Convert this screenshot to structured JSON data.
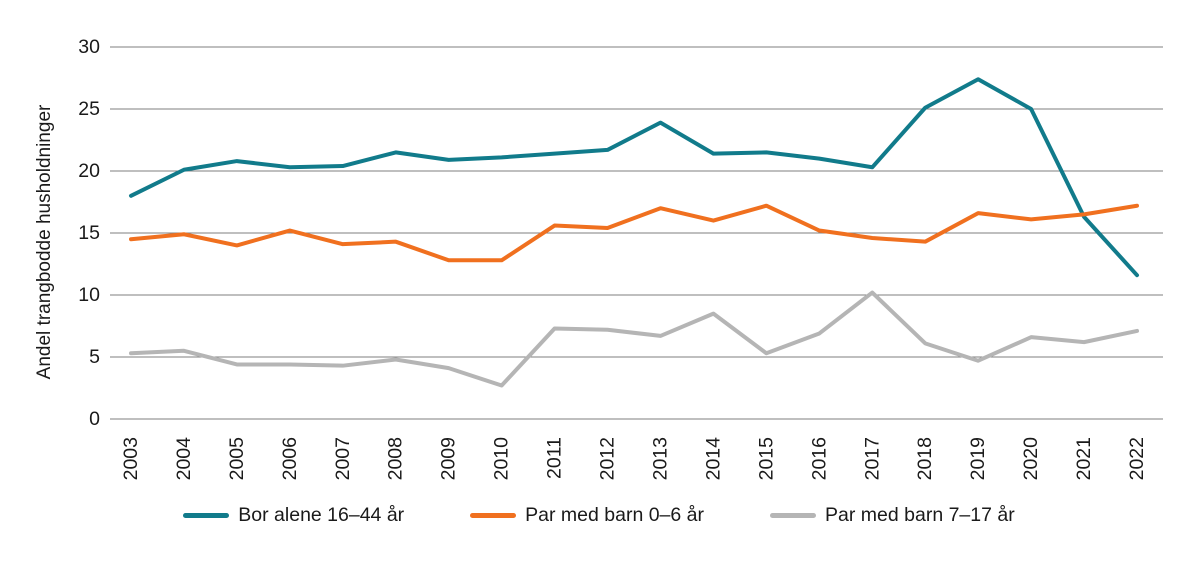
{
  "chart_data": {
    "type": "line",
    "ylabel": "Andel trangbodde husholdninger",
    "xlabel": "",
    "ylim": [
      0,
      30
    ],
    "yticks": [
      0,
      5,
      10,
      15,
      20,
      25,
      30
    ],
    "grid": "horizontal",
    "grid_color": "#7f7f7f",
    "text_color": "#1a1a1a",
    "legend_position": "bottom",
    "categories": [
      "2003",
      "2004",
      "2005",
      "2006",
      "2007",
      "2008",
      "2009",
      "2010",
      "2011",
      "2012",
      "2013",
      "2014",
      "2015",
      "2016",
      "2017",
      "2018",
      "2019",
      "2020",
      "2021",
      "2022"
    ],
    "series": [
      {
        "name": "Bor alene 16–44 år",
        "color": "#117b8b",
        "values": [
          18.0,
          20.1,
          20.8,
          20.3,
          20.4,
          21.5,
          20.9,
          21.1,
          21.4,
          21.7,
          23.9,
          21.4,
          21.5,
          21.0,
          20.3,
          25.1,
          27.4,
          25.0,
          16.3,
          11.6
        ]
      },
      {
        "name": "Par med barn 0–6 år",
        "color": "#f0701f",
        "values": [
          14.5,
          14.9,
          14.0,
          15.2,
          14.1,
          14.3,
          12.8,
          12.8,
          15.6,
          15.4,
          17.0,
          16.0,
          17.2,
          15.2,
          14.6,
          14.3,
          16.6,
          16.1,
          16.5,
          17.2
        ]
      },
      {
        "name": "Par med barn 7–17 år",
        "color": "#b5b5b5",
        "values": [
          5.3,
          5.5,
          4.4,
          4.4,
          4.3,
          4.8,
          4.1,
          2.7,
          7.3,
          7.2,
          6.7,
          8.5,
          5.3,
          6.9,
          10.2,
          6.1,
          4.7,
          6.6,
          6.2,
          7.1
        ]
      }
    ]
  }
}
